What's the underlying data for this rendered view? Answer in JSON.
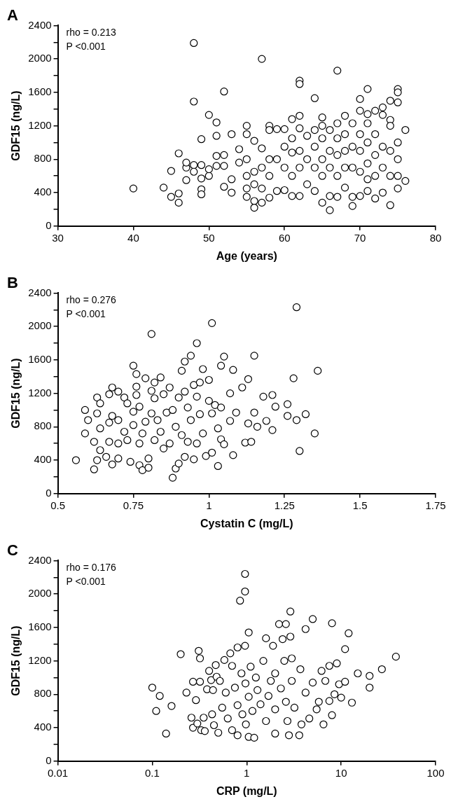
{
  "chart_data": [
    {
      "type": "scatter",
      "title": "A",
      "xlabel": "Age (years)",
      "ylabel": "GDF15 (ng/L)",
      "annotations": [
        "rho = 0.213",
        "P <0.001"
      ],
      "marker": "circle",
      "grid": false,
      "legend": false,
      "xlim": [
        30,
        80
      ],
      "xticks": [
        30,
        40,
        50,
        60,
        70,
        80
      ],
      "ylim": [
        0,
        2400
      ],
      "yticks": [
        0,
        {
          "value": 200,
          "label": null
        },
        400,
        {
          "value": 600,
          "label": null
        },
        800,
        {
          "value": 1000,
          "label": null
        },
        1200,
        {
          "value": 1400,
          "label": null
        },
        1600,
        {
          "value": 1800,
          "label": null
        },
        2000,
        {
          "value": 2200,
          "label": null
        },
        2400
      ],
      "series": [
        {
          "color": "#000000",
          "x": [
            40,
            44,
            45,
            45,
            46,
            46,
            46,
            47,
            47,
            47,
            48,
            48,
            48,
            48,
            49,
            49,
            49,
            49,
            49,
            50,
            50,
            50,
            51,
            51,
            51,
            51,
            52,
            52,
            52,
            52,
            53,
            53,
            53,
            54,
            54,
            55,
            55,
            55,
            55,
            55,
            55,
            56,
            56,
            56,
            56,
            56,
            57,
            57,
            57,
            57,
            57,
            58,
            58,
            58,
            58,
            58,
            59,
            59,
            59,
            60,
            60,
            60,
            60,
            61,
            61,
            61,
            61,
            61,
            62,
            62,
            62,
            62,
            62,
            62,
            62,
            63,
            63,
            63,
            64,
            64,
            64,
            64,
            64,
            65,
            65,
            65,
            65,
            65,
            65,
            66,
            66,
            66,
            66,
            66,
            67,
            67,
            67,
            67,
            67,
            67,
            68,
            68,
            68,
            68,
            68,
            69,
            69,
            69,
            69,
            69,
            70,
            70,
            70,
            70,
            70,
            70,
            71,
            71,
            71,
            71,
            71,
            71,
            71,
            72,
            72,
            72,
            72,
            72,
            73,
            73,
            73,
            73,
            73,
            74,
            74,
            74,
            74,
            74,
            74,
            75,
            75,
            75,
            75,
            75,
            75,
            75,
            76,
            76
          ],
          "values": [
            450,
            460,
            350,
            660,
            280,
            390,
            870,
            550,
            700,
            760,
            1490,
            2190,
            730,
            650,
            1040,
            570,
            440,
            380,
            730,
            1330,
            600,
            680,
            1240,
            1080,
            840,
            720,
            1610,
            470,
            850,
            720,
            1100,
            560,
            400,
            920,
            760,
            1200,
            1100,
            800,
            600,
            450,
            350,
            1020,
            650,
            500,
            300,
            220,
            2000,
            930,
            700,
            450,
            280,
            1200,
            1150,
            800,
            600,
            340,
            1160,
            800,
            420,
            1160,
            950,
            700,
            430,
            1280,
            1050,
            880,
            600,
            360,
            1740,
            1700,
            1320,
            1170,
            900,
            700,
            360,
            1080,
            800,
            500,
            1530,
            1150,
            950,
            700,
            420,
            1300,
            1200,
            1050,
            800,
            600,
            280,
            1150,
            900,
            700,
            360,
            190,
            1860,
            1230,
            1050,
            850,
            600,
            350,
            1320,
            1100,
            900,
            700,
            460,
            1230,
            950,
            700,
            350,
            240,
            1520,
            1380,
            1100,
            900,
            650,
            360,
            1640,
            1340,
            1230,
            1000,
            750,
            560,
            420,
            1380,
            1100,
            850,
            600,
            330,
            1420,
            1330,
            950,
            700,
            400,
            1500,
            1270,
            1200,
            900,
            600,
            250,
            1640,
            1600,
            1480,
            1000,
            800,
            600,
            450,
            1150,
            540
          ]
        }
      ]
    },
    {
      "type": "scatter",
      "title": "B",
      "xlabel": "Cystatin C (mg/L)",
      "ylabel": "GDF15 (ng/L)",
      "annotations": [
        "rho = 0.276",
        "P <0.001"
      ],
      "marker": "circle",
      "grid": false,
      "legend": false,
      "xlim": [
        0.5,
        1.75
      ],
      "xticks": [
        0.5,
        0.75,
        1,
        1.25,
        1.5,
        1.75
      ],
      "ylim": [
        0,
        2400
      ],
      "yticks": [
        0,
        {
          "value": 200,
          "label": null
        },
        400,
        {
          "value": 600,
          "label": null
        },
        800,
        {
          "value": 1000,
          "label": null
        },
        1200,
        {
          "value": 1400,
          "label": null
        },
        1600,
        {
          "value": 1800,
          "label": null
        },
        2000,
        {
          "value": 2200,
          "label": null
        },
        2400
      ],
      "series": [
        {
          "color": "#000000",
          "x": [
            0.56,
            0.59,
            0.59,
            0.6,
            0.62,
            0.62,
            0.63,
            0.63,
            0.63,
            0.64,
            0.64,
            0.64,
            0.66,
            0.67,
            0.67,
            0.67,
            0.68,
            0.68,
            0.68,
            0.7,
            0.7,
            0.7,
            0.7,
            0.72,
            0.72,
            0.73,
            0.73,
            0.74,
            0.75,
            0.75,
            0.75,
            0.76,
            0.76,
            0.76,
            0.77,
            0.77,
            0.77,
            0.78,
            0.78,
            0.79,
            0.79,
            0.8,
            0.8,
            0.81,
            0.81,
            0.81,
            0.82,
            0.82,
            0.82,
            0.83,
            0.84,
            0.84,
            0.85,
            0.85,
            0.86,
            0.87,
            0.87,
            0.88,
            0.88,
            0.89,
            0.89,
            0.9,
            0.9,
            0.91,
            0.91,
            0.92,
            0.92,
            0.92,
            0.93,
            0.93,
            0.94,
            0.94,
            0.95,
            0.95,
            0.96,
            0.96,
            0.96,
            0.97,
            0.97,
            0.98,
            0.98,
            0.99,
            1.0,
            1.0,
            1.01,
            1.01,
            1.01,
            1.02,
            1.03,
            1.03,
            1.04,
            1.04,
            1.04,
            1.05,
            1.05,
            1.07,
            1.07,
            1.08,
            1.08,
            1.09,
            1.11,
            1.12,
            1.13,
            1.13,
            1.14,
            1.15,
            1.15,
            1.16,
            1.18,
            1.19,
            1.21,
            1.21,
            1.22,
            1.26,
            1.26,
            1.28,
            1.29,
            1.29,
            1.3,
            1.32,
            1.35,
            1.36
          ],
          "values": [
            400,
            1000,
            720,
            880,
            620,
            290,
            1150,
            960,
            400,
            1080,
            780,
            520,
            440,
            1190,
            850,
            620,
            1270,
            930,
            350,
            1220,
            880,
            600,
            420,
            1150,
            740,
            1080,
            640,
            380,
            1530,
            980,
            820,
            1430,
            1280,
            1180,
            1040,
            600,
            340,
            720,
            280,
            1380,
            860,
            420,
            310,
            1910,
            1230,
            960,
            1330,
            1140,
            640,
            880,
            1390,
            740,
            1190,
            540,
            970,
            1270,
            600,
            1000,
            190,
            800,
            300,
            1150,
            360,
            1470,
            700,
            1580,
            1220,
            440,
            1030,
            620,
            1650,
            880,
            1300,
            410,
            1800,
            1160,
            600,
            1330,
            950,
            1490,
            720,
            450,
            1360,
            1110,
            2040,
            960,
            490,
            1060,
            780,
            330,
            1530,
            1030,
            650,
            1640,
            590,
            1200,
            870,
            1480,
            460,
            970,
            1270,
            610,
            1370,
            840,
            620,
            1650,
            970,
            800,
            1160,
            870,
            1180,
            760,
            1040,
            1070,
            930,
            1380,
            2230,
            880,
            510,
            950,
            720,
            1470
          ]
        }
      ]
    },
    {
      "type": "scatter",
      "title": "C",
      "xlabel": "CRP (mg/L)",
      "ylabel": "GDF15 (ng/L)",
      "annotations": [
        "rho = 0.176",
        "P <0.001"
      ],
      "marker": "circle",
      "grid": false,
      "legend": false,
      "log": "x",
      "xlim": [
        0.01,
        100
      ],
      "xticks": [
        0.01,
        0.1,
        1,
        10,
        100
      ],
      "ylim": [
        0,
        2400
      ],
      "yticks": [
        0,
        {
          "value": 200,
          "label": null
        },
        400,
        {
          "value": 600,
          "label": null
        },
        800,
        {
          "value": 1000,
          "label": null
        },
        1200,
        {
          "value": 1400,
          "label": null
        },
        1600,
        {
          "value": 1800,
          "label": null
        },
        2000,
        {
          "value": 2200,
          "label": null
        },
        2400
      ],
      "series": [
        {
          "color": "#000000",
          "x": [
            0.1,
            0.11,
            0.12,
            0.14,
            0.16,
            0.2,
            0.23,
            0.26,
            0.27,
            0.27,
            0.29,
            0.3,
            0.31,
            0.32,
            0.32,
            0.33,
            0.35,
            0.36,
            0.38,
            0.4,
            0.42,
            0.43,
            0.44,
            0.45,
            0.47,
            0.48,
            0.5,
            0.52,
            0.55,
            0.58,
            0.6,
            0.63,
            0.67,
            0.7,
            0.7,
            0.75,
            0.8,
            0.8,
            0.8,
            0.85,
            0.88,
            0.9,
            0.96,
            0.96,
            0.96,
            0.97,
            0.98,
            1.05,
            1.05,
            1.05,
            1.1,
            1.15,
            1.2,
            1.25,
            1.3,
            1.4,
            1.5,
            1.6,
            1.6,
            1.7,
            1.8,
            1.9,
            2,
            2,
            2,
            2.2,
            2.3,
            2.4,
            2.5,
            2.6,
            2.6,
            2.7,
            2.8,
            2.9,
            2.9,
            3,
            3,
            3.2,
            3.6,
            3.7,
            3.8,
            4.2,
            4.2,
            4.6,
            5,
            5,
            5.5,
            5.8,
            6.2,
            6.5,
            6.8,
            7.5,
            7.5,
            8,
            8,
            8.5,
            9,
            9.5,
            10,
            11,
            11,
            12,
            13,
            15,
            20,
            20,
            27,
            38
          ],
          "values": [
            880,
            600,
            780,
            330,
            660,
            1280,
            820,
            520,
            950,
            400,
            730,
            450,
            1320,
            1230,
            950,
            370,
            520,
            360,
            860,
            1080,
            970,
            560,
            850,
            430,
            1150,
            1010,
            340,
            960,
            640,
            1210,
            820,
            510,
            1290,
            1140,
            370,
            880,
            1360,
            670,
            310,
            1920,
            1050,
            560,
            2240,
            2030,
            1380,
            930,
            440,
            1540,
            770,
            290,
            1130,
            600,
            280,
            1000,
            850,
            680,
            1200,
            1470,
            480,
            780,
            960,
            1380,
            1050,
            620,
            330,
            1640,
            870,
            1460,
            1200,
            1640,
            710,
            480,
            310,
            1790,
            1490,
            1230,
            960,
            640,
            310,
            1100,
            440,
            1580,
            820,
            510,
            1700,
            940,
            620,
            710,
            1080,
            440,
            960,
            1140,
            720,
            1650,
            550,
            800,
            1170,
            920,
            760,
            1340,
            950,
            1530,
            700,
            1050,
            1020,
            880,
            1100,
            1250
          ]
        }
      ]
    }
  ]
}
